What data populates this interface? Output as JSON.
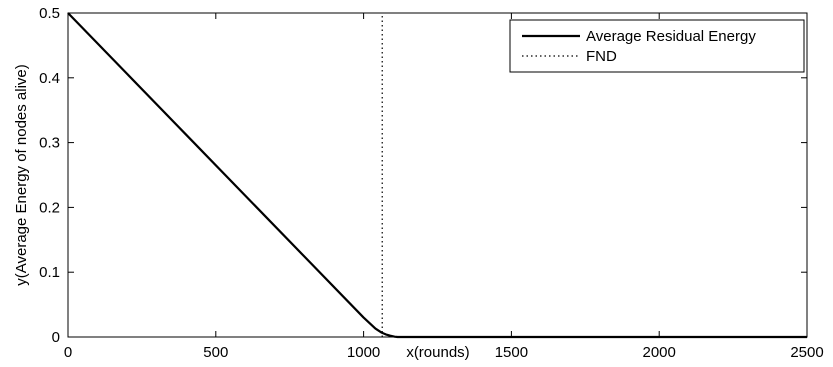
{
  "chart_data": {
    "type": "line",
    "title": "",
    "xlabel": "x(rounds)",
    "ylabel": "y(Average Energy of nodes alive)",
    "xlim": [
      0,
      2500
    ],
    "ylim": [
      0,
      0.5
    ],
    "xticks": [
      0,
      500,
      1000,
      1500,
      2000,
      2500
    ],
    "xtick_labels": [
      "0",
      "500",
      "1000",
      "1500",
      "2000",
      "2500"
    ],
    "yticks": [
      0,
      0.1,
      0.2,
      0.3,
      0.4,
      0.5
    ],
    "ytick_labels": [
      "0",
      "0.1",
      "0.2",
      "0.3",
      "0.4",
      "0.5"
    ],
    "grid": false,
    "legend_position": "top-right",
    "series": [
      {
        "name": "Average Residual Energy",
        "style": "solid",
        "color": "#000000",
        "x": [
          0,
          200,
          400,
          600,
          800,
          1000,
          1040,
          1060,
          1075,
          1090,
          1105,
          1115,
          1130,
          1200,
          1500,
          2000,
          2500
        ],
        "y": [
          0.5,
          0.406,
          0.312,
          0.218,
          0.124,
          0.03,
          0.013,
          0.007,
          0.004,
          0.002,
          0.0005,
          0.0,
          0.0,
          0.0,
          0.0,
          0.0,
          0.0
        ]
      },
      {
        "name": "FND",
        "style": "dotted",
        "color": "#000000",
        "x": [
          1063,
          1063
        ],
        "y": [
          0,
          0.5
        ]
      }
    ]
  }
}
